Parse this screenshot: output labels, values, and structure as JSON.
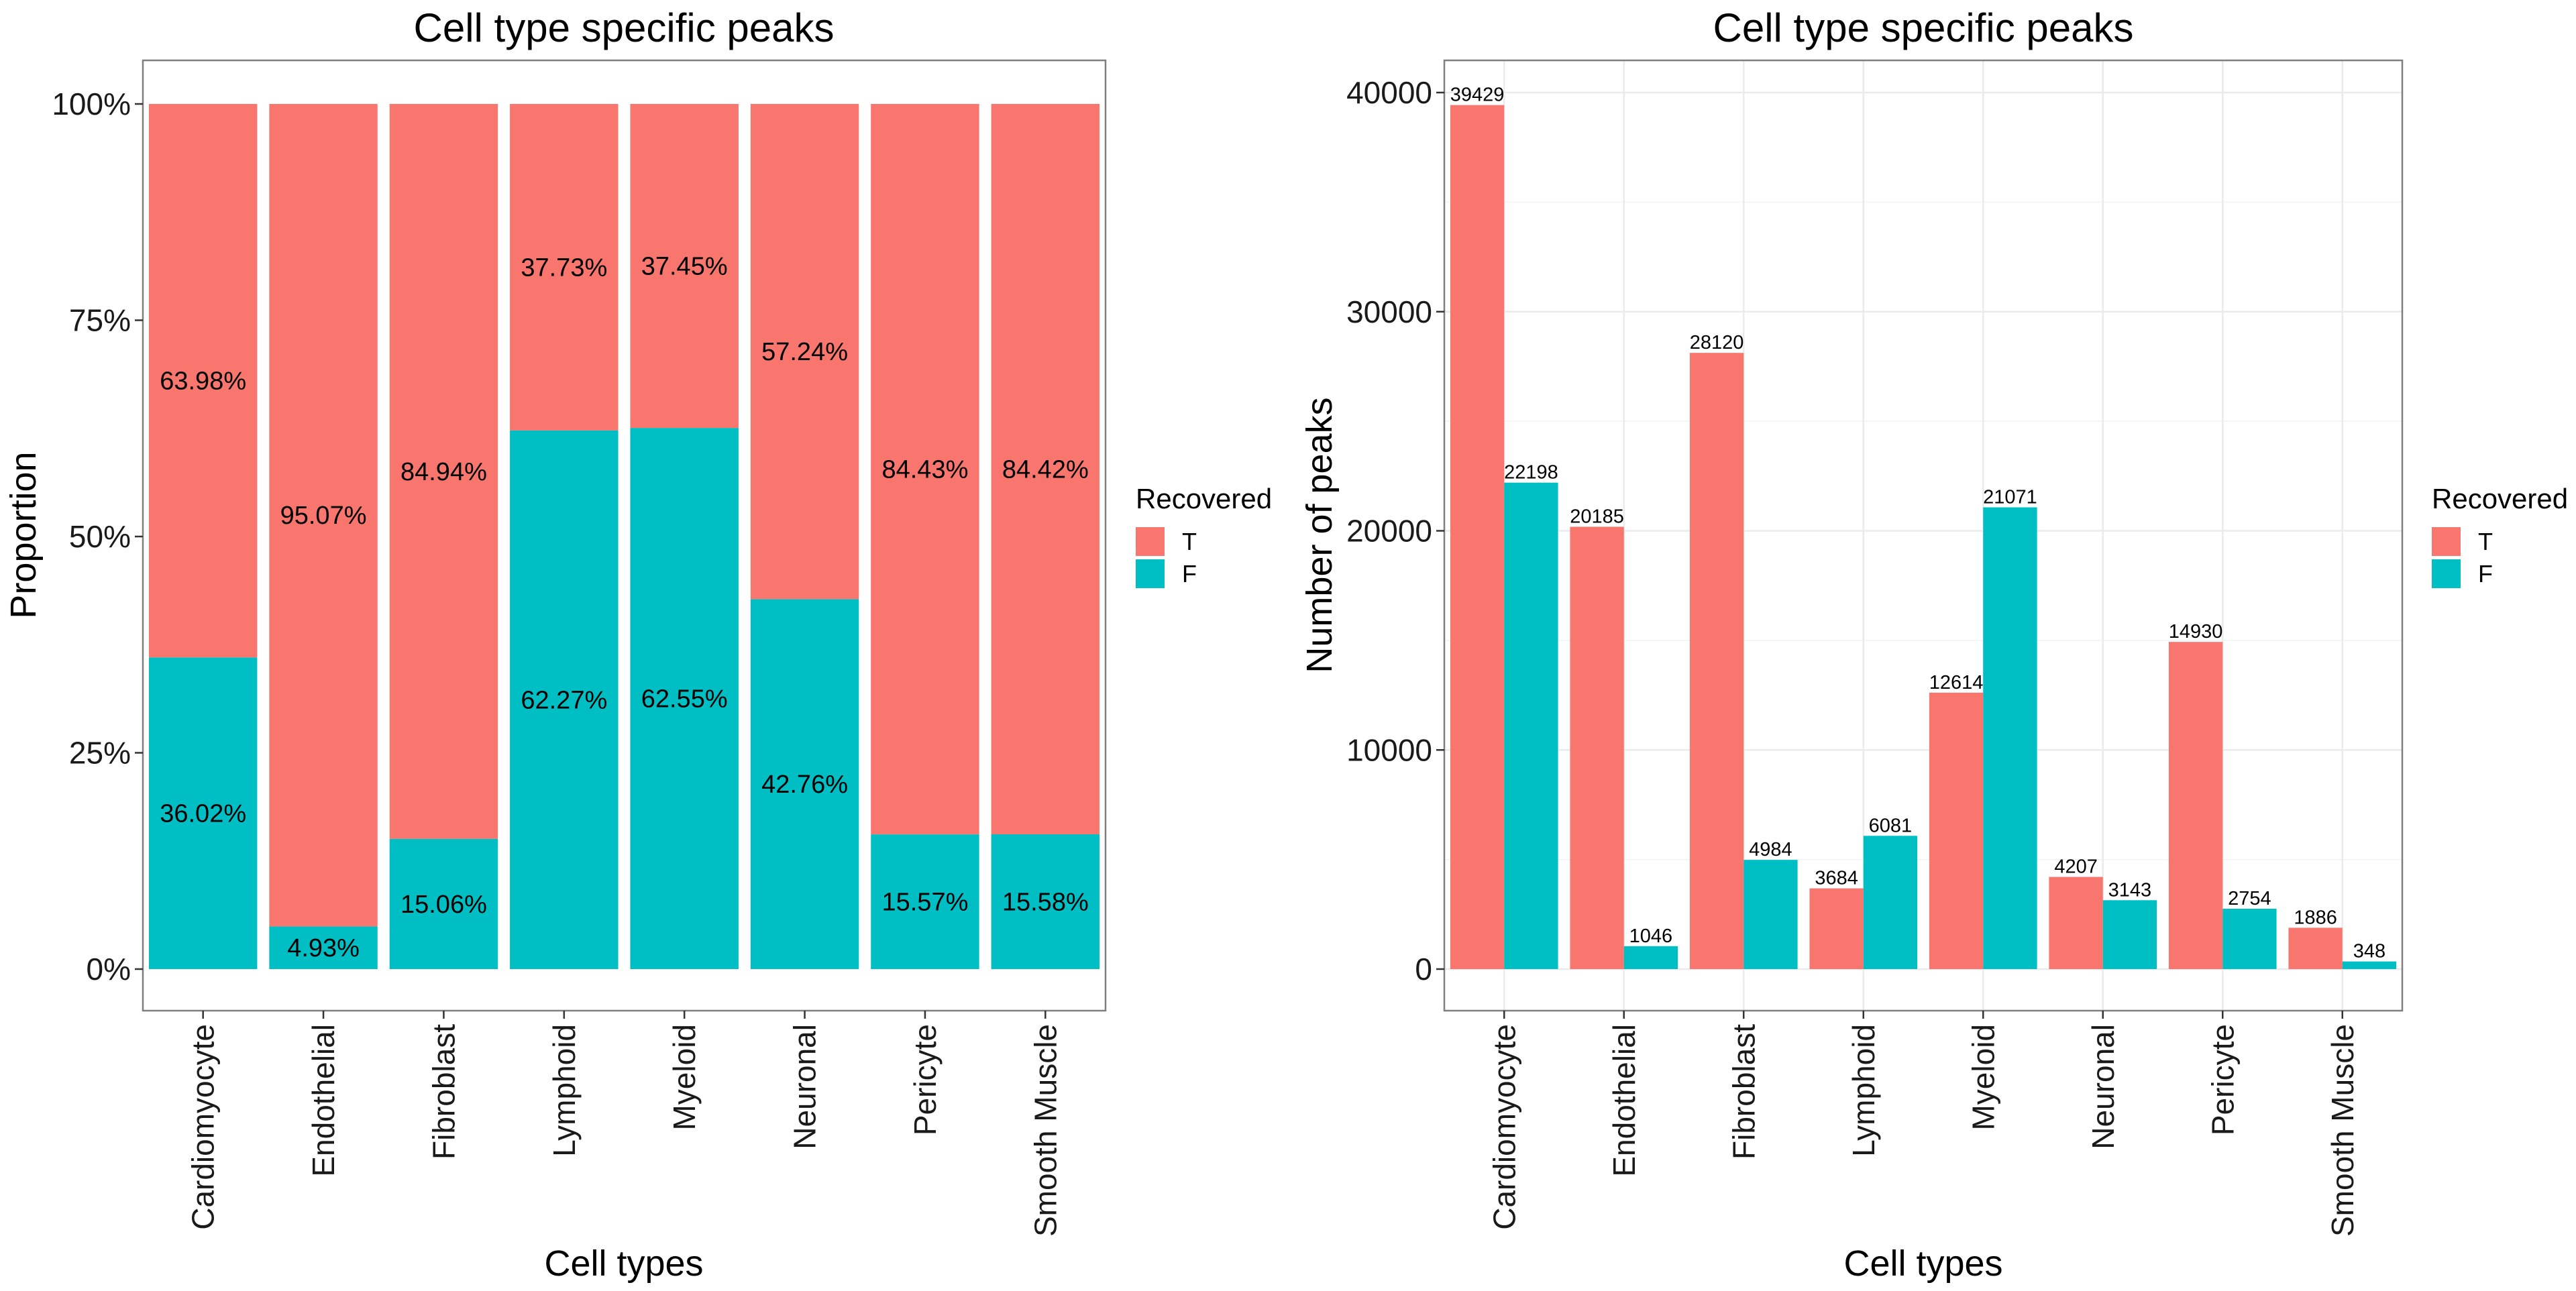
{
  "colors": {
    "T": "#F8766D",
    "F": "#00BFC4",
    "grid": "#ebebeb",
    "border": "#7f7f7f"
  },
  "legend": {
    "title": "Recovered",
    "items": [
      {
        "key": "T",
        "label": "T"
      },
      {
        "key": "F",
        "label": "F"
      }
    ]
  },
  "chart_data": [
    {
      "type": "bar",
      "stacked": true,
      "title": "Cell type specific peaks",
      "xlabel": "Cell types",
      "ylabel": "Proportion",
      "ylim": [
        0,
        1
      ],
      "yticks": [
        "0%",
        "25%",
        "50%",
        "75%",
        "100%"
      ],
      "grid": false,
      "legend_position": "right",
      "categories": [
        "Cardiomyocyte",
        "Endothelial",
        "Fibroblast",
        "Lymphoid",
        "Myeloid",
        "Neuronal",
        "Pericyte",
        "Smooth Muscle"
      ],
      "series": [
        {
          "name": "T",
          "values": [
            0.6398,
            0.9507,
            0.8494,
            0.3773,
            0.3745,
            0.5724,
            0.8443,
            0.8442
          ],
          "labels": [
            "63.98%",
            "95.07%",
            "84.94%",
            "37.73%",
            "37.45%",
            "57.24%",
            "84.43%",
            "84.42%"
          ]
        },
        {
          "name": "F",
          "values": [
            0.3602,
            0.0493,
            0.1506,
            0.6227,
            0.6255,
            0.4276,
            0.1557,
            0.1558
          ],
          "labels": [
            "36.02%",
            "4.93%",
            "15.06%",
            "62.27%",
            "62.55%",
            "42.76%",
            "15.57%",
            "15.58%"
          ]
        }
      ]
    },
    {
      "type": "bar",
      "stacked": false,
      "title": "Cell type specific peaks",
      "xlabel": "Cell types",
      "ylabel": "Number of peaks",
      "ylim": [
        0,
        41400
      ],
      "yticks": [
        "0",
        "10000",
        "20000",
        "30000",
        "40000"
      ],
      "grid": true,
      "legend_position": "right",
      "categories": [
        "Cardiomyocyte",
        "Endothelial",
        "Fibroblast",
        "Lymphoid",
        "Myeloid",
        "Neuronal",
        "Pericyte",
        "Smooth Muscle"
      ],
      "series": [
        {
          "name": "T",
          "values": [
            39429,
            20185,
            28120,
            3684,
            12614,
            4207,
            14930,
            1886
          ],
          "labels": [
            "39429",
            "20185",
            "28120",
            "3684",
            "12614",
            "4207",
            "14930",
            "1886"
          ]
        },
        {
          "name": "F",
          "values": [
            22198,
            1046,
            4984,
            6081,
            21071,
            3143,
            2754,
            348
          ],
          "labels": [
            "22198",
            "1046",
            "4984",
            "6081",
            "21071",
            "3143",
            "2754",
            "348"
          ]
        }
      ]
    }
  ]
}
